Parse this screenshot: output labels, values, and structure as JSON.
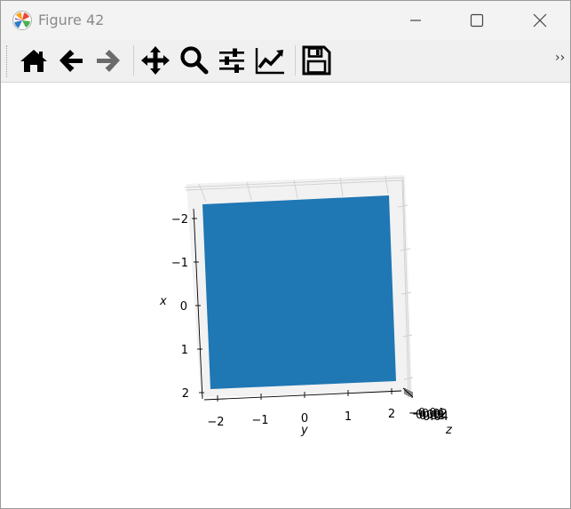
{
  "window": {
    "title": "Figure 42",
    "app_icon": "matplotlib-icon",
    "controls": [
      "minimize-icon",
      "maximize-icon",
      "close-icon"
    ]
  },
  "toolbar": {
    "buttons": [
      {
        "name": "home-button",
        "icon": "home-icon"
      },
      {
        "name": "back-button",
        "icon": "arrow-left-icon"
      },
      {
        "name": "forward-button",
        "icon": "arrow-right-icon"
      },
      {
        "name": "pan-button",
        "icon": "move-icon"
      },
      {
        "name": "zoom-button",
        "icon": "magnifier-icon"
      },
      {
        "name": "subplots-button",
        "icon": "sliders-icon"
      },
      {
        "name": "axes-edit-button",
        "icon": "chart-line-icon"
      },
      {
        "name": "save-button",
        "icon": "floppy-disk-icon"
      }
    ],
    "overflow_label": "››"
  },
  "chart_data": {
    "type": "surface",
    "projection": "3d",
    "surface_color": "#1f77b4",
    "surface": "z = 0 over x ∈ [-2.2, 2.2], y ∈ [-2.2, 2.2]",
    "x_axis": {
      "label": "x",
      "ticks": [
        "−2",
        "−1",
        "0",
        "1",
        "2"
      ],
      "range": [
        -2.2,
        2.2
      ]
    },
    "y_axis": {
      "label": "y",
      "ticks": [
        "−2",
        "−1",
        "0",
        "1",
        "2"
      ],
      "range": [
        -2.2,
        2.2
      ]
    },
    "z_axis": {
      "label": "z",
      "ticks": [
        "−0.04",
        "−0.02",
        "0.00",
        "0.02",
        "0.04"
      ]
    },
    "grid": true,
    "pane_color": "#f2f2f2"
  }
}
